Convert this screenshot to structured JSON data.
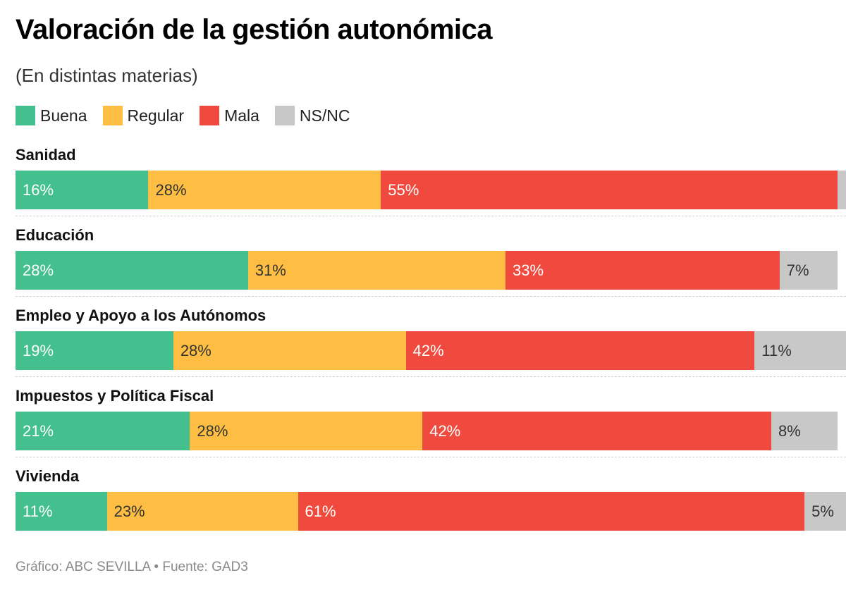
{
  "source": "Gráfico: ABC SEVILLA • Fuente: GAD3",
  "chart_data": {
    "type": "bar",
    "orientation": "horizontal",
    "stacked": true,
    "title": "Valoración de la gestión autonómica",
    "subtitle": "(En distintas materias)",
    "xlim": [
      0,
      100
    ],
    "grid": false,
    "legend_position": "top-left",
    "categories": [
      "Sanidad",
      "Educación",
      "Empleo y Apoyo a los Autónomos",
      "Impuestos y Política Fiscal",
      "Vivienda"
    ],
    "series": [
      {
        "name": "Buena",
        "color": "#43c08d",
        "text_color": "#ffffff",
        "values": [
          16,
          28,
          19,
          21,
          11
        ]
      },
      {
        "name": "Regular",
        "color": "#fdbe43",
        "text_color": "#333333",
        "values": [
          28,
          31,
          28,
          28,
          23
        ]
      },
      {
        "name": "Mala",
        "color": "#f04a3e",
        "text_color": "#ffffff",
        "values": [
          55,
          33,
          42,
          42,
          61
        ]
      },
      {
        "name": "NS/NC",
        "color": "#c8c8c8",
        "text_color": "#333333",
        "values": [
          1,
          7,
          11,
          8,
          5
        ]
      }
    ],
    "data_labels": [
      [
        "16%",
        "28%",
        "55%",
        ""
      ],
      [
        "28%",
        "31%",
        "33%",
        "7%"
      ],
      [
        "19%",
        "28%",
        "42%",
        "11%"
      ],
      [
        "21%",
        "28%",
        "42%",
        "8%"
      ],
      [
        "11%",
        "23%",
        "61%",
        "5%"
      ]
    ]
  }
}
